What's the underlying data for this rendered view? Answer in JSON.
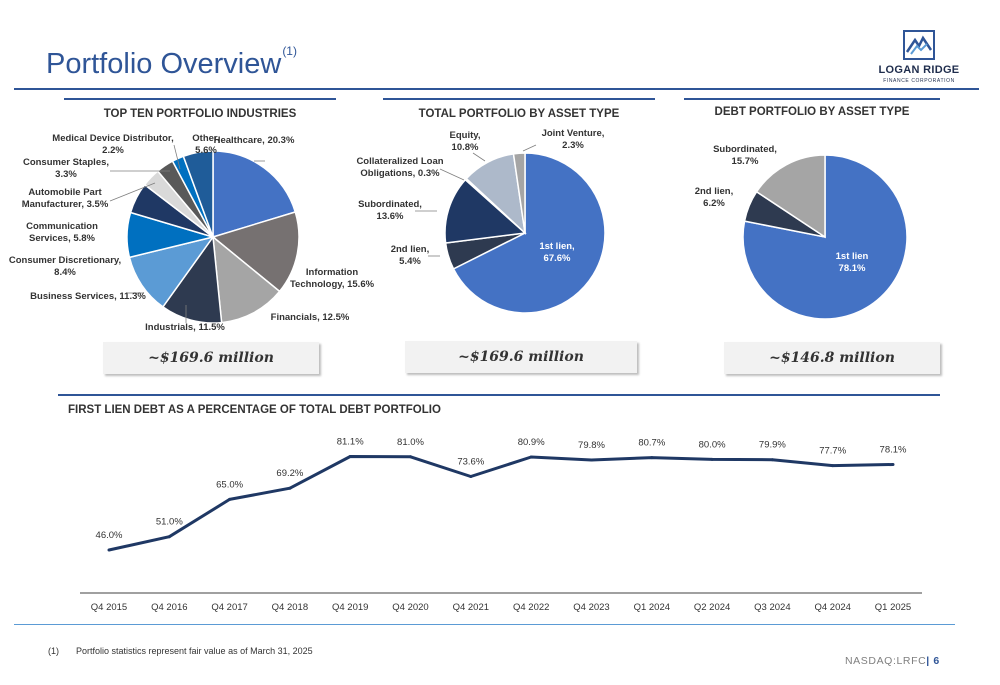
{
  "slide": {
    "title": "Portfolio Overview",
    "title_note": "(1)",
    "logo": {
      "name": "LOGAN RIDGE",
      "sub": "FINANCE CORPORATION"
    },
    "footnote_num": "(1)",
    "footnote": "Portfolio statistics represent fair value as of March 31, 2025",
    "ticker": "NASDAQ:LRFC",
    "separator": "|",
    "page": "6"
  },
  "chart_data": [
    {
      "id": "industries",
      "type": "pie",
      "title": "TOP TEN PORTFOLIO INDUSTRIES",
      "total": "~$169.6 million",
      "slices": [
        {
          "name": "Healthcare,",
          "value": 20.3,
          "label": "20.3%",
          "color": "#4472c4"
        },
        {
          "name": "Information Technology,",
          "value": 15.6,
          "label": "15.6%",
          "color": "#767171"
        },
        {
          "name": "Financials,",
          "value": 12.5,
          "label": "12.5%",
          "color": "#a5a5a5"
        },
        {
          "name": "Industrials,",
          "value": 11.5,
          "label": "11.5%",
          "color": "#2e3a50"
        },
        {
          "name": "Business Services,",
          "value": 11.3,
          "label": "11.3%",
          "color": "#5b9bd5"
        },
        {
          "name": "Consumer Discretionary,",
          "value": 8.4,
          "label": "8.4%",
          "color": "#0070c0"
        },
        {
          "name": "Communication Services,",
          "value": 5.8,
          "label": "5.8%",
          "color": "#1f3864"
        },
        {
          "name": "Automobile Part Manufacturer,",
          "value": 3.5,
          "label": "3.5%",
          "color": "#d9d9d9"
        },
        {
          "name": "Consumer Staples,",
          "value": 3.3,
          "label": "3.3%",
          "color": "#595959"
        },
        {
          "name": "Medical Device Distributor,",
          "value": 2.2,
          "label": "2.2%",
          "color": "#0070c0"
        },
        {
          "name": "Other,",
          "value": 5.6,
          "label": "5.6%",
          "color": "#1f5c99"
        }
      ]
    },
    {
      "id": "asset",
      "type": "pie",
      "title": "TOTAL PORTFOLIO BY ASSET TYPE",
      "total": "~$169.6 million",
      "slices": [
        {
          "name": "1st lien,",
          "value": 67.6,
          "label": "67.6%",
          "color": "#4472c4"
        },
        {
          "name": "2nd lien,",
          "value": 5.4,
          "label": "5.4%",
          "color": "#2e3a50"
        },
        {
          "name": "Subordinated,",
          "value": 13.6,
          "label": "13.6%",
          "color": "#1f3864"
        },
        {
          "name": "Collateralized Loan Obligations,",
          "value": 0.3,
          "label": "0.3%",
          "color": "#8497b0"
        },
        {
          "name": "Equity,",
          "value": 10.8,
          "label": "10.8%",
          "color": "#adb9ca"
        },
        {
          "name": "Joint Venture,",
          "value": 2.3,
          "label": "2.3%",
          "color": "#a5a5a5"
        }
      ]
    },
    {
      "id": "debt",
      "type": "pie",
      "title": "DEBT PORTFOLIO BY ASSET TYPE",
      "total": "~$146.8 million",
      "slices": [
        {
          "name": "1st lien",
          "value": 78.1,
          "label": "78.1%",
          "color": "#4472c4"
        },
        {
          "name": "2nd lien,",
          "value": 6.2,
          "label": "6.2%",
          "color": "#2e3a50"
        },
        {
          "name": "Subordinated,",
          "value": 15.7,
          "label": "15.7%",
          "color": "#a5a5a5"
        }
      ]
    },
    {
      "id": "firstlien",
      "type": "line",
      "title": "FIRST LIEN DEBT AS A PERCENTAGE OF TOTAL DEBT PORTFOLIO",
      "color": "#1f3864",
      "categories": [
        "Q4 2015",
        "Q4 2016",
        "Q4 2017",
        "Q4 2018",
        "Q4 2019",
        "Q4 2020",
        "Q4 2021",
        "Q4 2022",
        "Q4 2023",
        "Q1 2024",
        "Q2 2024",
        "Q3 2024",
        "Q4 2024",
        "Q1 2025"
      ],
      "series": [
        {
          "values": [
            46.0,
            51.0,
            65.0,
            69.2,
            81.1,
            81.0,
            73.6,
            80.9,
            79.8,
            80.7,
            80.0,
            79.9,
            77.7,
            78.1
          ],
          "labels": [
            "46.0%",
            "51.0%",
            "65.0%",
            "69.2%",
            "81.1%",
            "81.0%",
            "73.6%",
            "80.9%",
            "79.8%",
            "80.7%",
            "80.0%",
            "79.9%",
            "77.7%",
            "78.1%"
          ]
        }
      ],
      "grid": false,
      "legend": "none"
    }
  ]
}
